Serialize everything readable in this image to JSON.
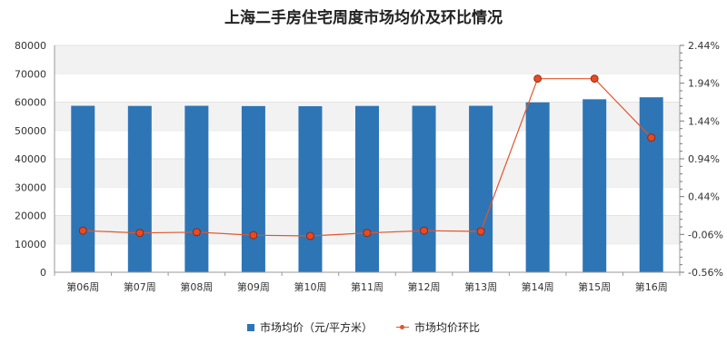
{
  "chart_data": {
    "type": "bar",
    "title": "上海二手房住宅周度市场均价及环比情况",
    "categories": [
      "第06周",
      "第07周",
      "第08周",
      "第09周",
      "第10周",
      "第11周",
      "第12周",
      "第13周",
      "第14周",
      "第15周",
      "第16周"
    ],
    "left_axis": {
      "ylim": [
        0,
        80000
      ],
      "ticks": [
        "0",
        "10000",
        "20000",
        "30000",
        "40000",
        "50000",
        "60000",
        "70000",
        "80000"
      ]
    },
    "right_axis": {
      "ylim": [
        -0.56,
        2.44
      ],
      "ticks": [
        "-0.56%",
        "-0.06%",
        "0.44%",
        "0.94%",
        "1.44%",
        "1.94%",
        "2.44%"
      ]
    },
    "series": [
      {
        "name": "市场均价（元/平方米）",
        "kind": "bar",
        "axis": "left",
        "color": "#2e75b6",
        "values": [
          58700,
          58650,
          58700,
          58600,
          58550,
          58650,
          58700,
          58700,
          59900,
          61000,
          61700
        ]
      },
      {
        "name": "市场均价环比",
        "kind": "line",
        "axis": "right",
        "color": "#e0562d",
        "values": [
          -0.01,
          -0.04,
          -0.03,
          -0.07,
          -0.08,
          -0.04,
          -0.01,
          -0.02,
          2.0,
          2.0,
          1.22
        ]
      }
    ],
    "grid": "horizontal-bands",
    "legend_position": "bottom"
  }
}
